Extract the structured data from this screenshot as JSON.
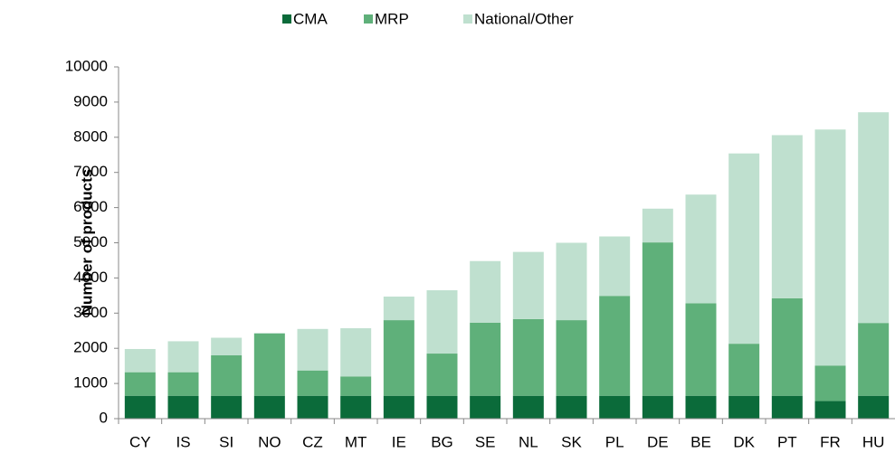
{
  "chart_data": {
    "type": "stacked_bar",
    "categories": [
      "CY",
      "IS",
      "SI",
      "NO",
      "CZ",
      "MT",
      "IE",
      "BG",
      "SE",
      "NL",
      "SK",
      "PL",
      "DE",
      "BE",
      "DK",
      "PT",
      "FR",
      "HU"
    ],
    "series": [
      {
        "name": "CMA",
        "color": "#0b6b3a",
        "values": [
          650,
          650,
          650,
          650,
          650,
          650,
          650,
          650,
          650,
          650,
          650,
          650,
          650,
          650,
          650,
          650,
          500,
          650
        ]
      },
      {
        "name": "MRP",
        "color": "#5fb07a",
        "values": [
          670,
          670,
          1150,
          1770,
          720,
          550,
          2150,
          1200,
          2080,
          2180,
          2150,
          2840,
          4360,
          2630,
          1480,
          2770,
          1010,
          2070
        ]
      },
      {
        "name": "National/Other",
        "color": "#bfe0cf",
        "values": [
          660,
          880,
          500,
          20,
          1180,
          1370,
          670,
          1800,
          1750,
          1910,
          2200,
          1690,
          960,
          3090,
          5410,
          4640,
          6710,
          5990
        ]
      }
    ],
    "y_label": "Number of products",
    "ylim": [
      0,
      10000
    ],
    "yticks": [
      0,
      1000,
      2000,
      3000,
      4000,
      5000,
      6000,
      7000,
      8000,
      9000,
      10000
    ],
    "legend": "top"
  }
}
